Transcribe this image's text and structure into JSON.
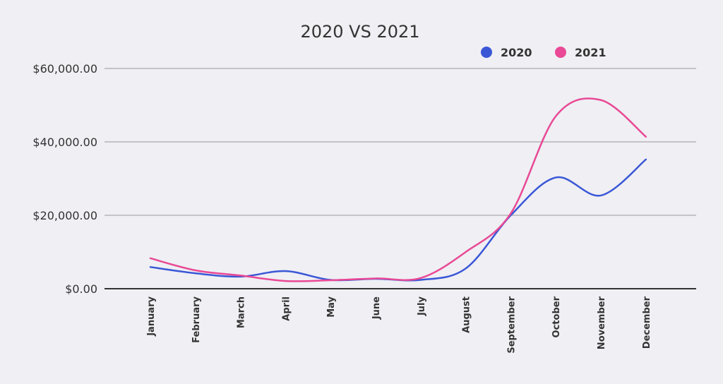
{
  "chart_data": {
    "type": "line",
    "title": "2020 VS 2021",
    "categories": [
      "January",
      "February",
      "March",
      "April",
      "May",
      "June",
      "July",
      "August",
      "September",
      "October",
      "November",
      "December"
    ],
    "yticks": [
      "$0.00",
      "$20,000.00",
      "$40,000.00",
      "$60,000.00"
    ],
    "ylim": [
      0,
      60000
    ],
    "grid": true,
    "legend_position": "top-right",
    "series": [
      {
        "name": "2020",
        "color": "#3a57d6",
        "values": [
          5900,
          4200,
          3300,
          4800,
          2400,
          2700,
          2400,
          5500,
          20000,
          30300,
          25400,
          35200
        ]
      },
      {
        "name": "2021",
        "color": "#e94995",
        "values": [
          8300,
          5000,
          3600,
          2100,
          2300,
          2800,
          2900,
          10000,
          20500,
          47000,
          51400,
          41400
        ]
      }
    ]
  }
}
